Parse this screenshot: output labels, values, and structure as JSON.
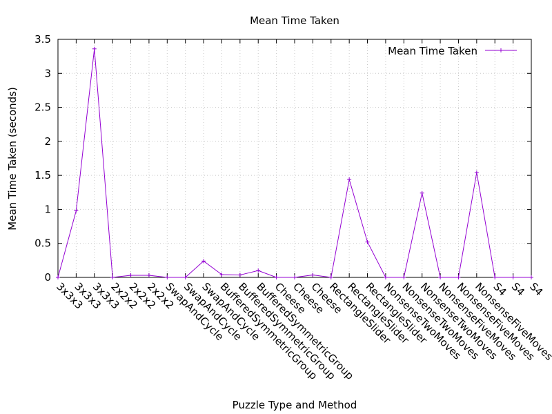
{
  "chart_data": {
    "type": "line",
    "title": "Mean Time Taken",
    "xlabel": "Puzzle Type and Method",
    "ylabel": "Mean Time Taken (seconds)",
    "ylim": [
      0,
      3.5
    ],
    "yticks": [
      "0",
      "0.5",
      "1",
      "1.5",
      "2",
      "2.5",
      "3",
      "3.5"
    ],
    "grid": true,
    "legend_position": "top-right",
    "categories": [
      "3x3x3",
      "3x3x3",
      "3x3x3",
      "2x2x2",
      "2x2x2",
      "2x2x2",
      "SwapAndCycle",
      "SwapAndCycle",
      "SwapAndCycle",
      "BufferedSymmetricGroup",
      "BufferedSymmetricGroup",
      "BufferedSymmetricGroup",
      "Cheese",
      "Cheese",
      "Cheese",
      "RectangleSlider",
      "RectangleSlider",
      "RectangleSlider",
      "NonsenseTwoMoves",
      "NonsenseTwoMoves",
      "NonsenseTwoMoves",
      "NonsenseFiveMoves",
      "NonsenseFiveMoves",
      "NonsenseFiveMoves",
      "S4",
      "S4",
      "S4"
    ],
    "series": [
      {
        "name": "Mean Time Taken",
        "color": "#9400D3",
        "values": [
          0,
          0.98,
          3.36,
          0,
          0.03,
          0.03,
          0,
          0,
          0.24,
          0.04,
          0.035,
          0.1,
          0,
          0,
          0.035,
          0,
          1.44,
          0.52,
          0,
          0,
          1.24,
          0,
          0,
          1.54,
          0,
          0,
          0
        ]
      }
    ]
  }
}
